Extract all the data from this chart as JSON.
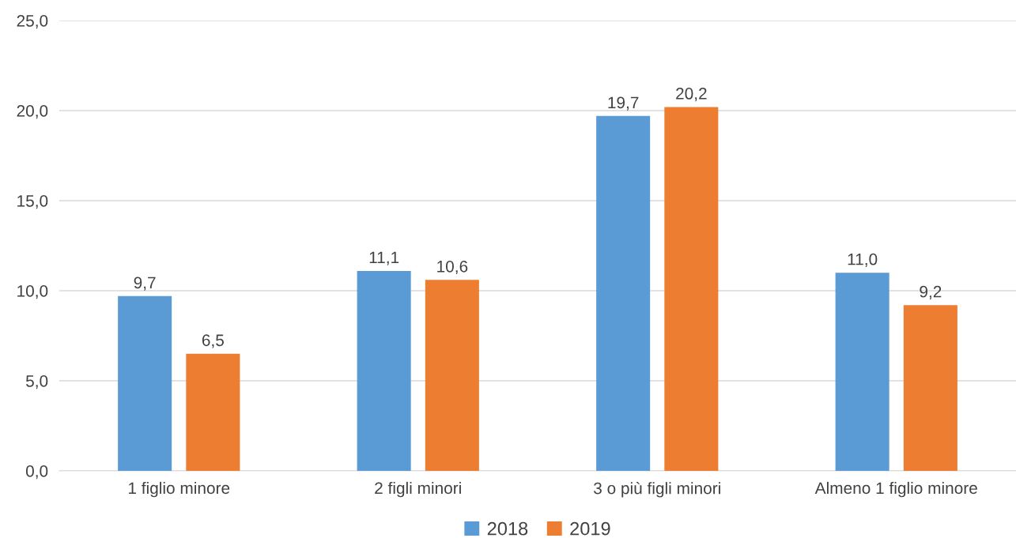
{
  "chart_data": {
    "type": "bar",
    "categories": [
      "1 figlio minore",
      "2 figli minori",
      "3 o più figli minori",
      "Almeno 1 figlio minore"
    ],
    "series": [
      {
        "name": "2018",
        "color": "#5b9bd5",
        "values": [
          9.7,
          11.1,
          19.7,
          11.0
        ],
        "value_labels": [
          "9,7",
          "11,1",
          "19,7",
          "11,0"
        ]
      },
      {
        "name": "2019",
        "color": "#ed7d31",
        "values": [
          6.5,
          10.6,
          20.2,
          9.2
        ],
        "value_labels": [
          "6,5",
          "10,6",
          "20,2",
          "9,2"
        ]
      }
    ],
    "ylim": [
      0,
      25
    ],
    "yticks": [
      {
        "value": 0,
        "label": "0,0"
      },
      {
        "value": 5,
        "label": "5,0"
      },
      {
        "value": 10,
        "label": "10,0"
      },
      {
        "value": 15,
        "label": "15,0"
      },
      {
        "value": 20,
        "label": "20,0"
      },
      {
        "value": 25,
        "label": "25,0"
      }
    ],
    "grid": "y",
    "legend": "bottom"
  }
}
